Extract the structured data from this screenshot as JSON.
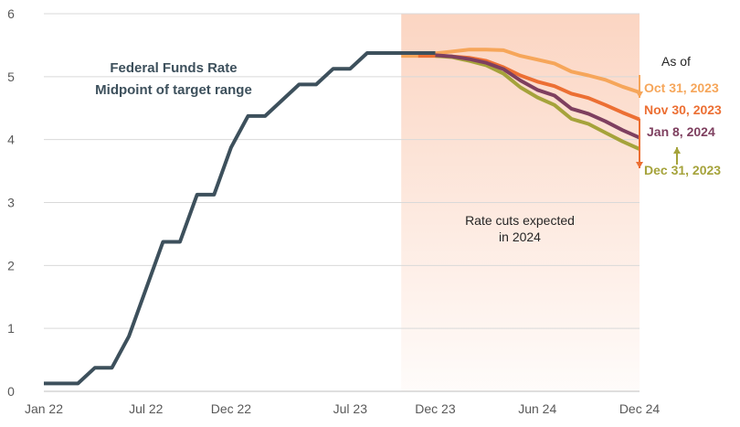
{
  "colors": {
    "fed_funds": "#3d505c",
    "shade": "#fbd5c2",
    "oct": "#f6a65a",
    "nov": "#ec6f33",
    "jan": "#7e3f5f",
    "dec": "#a5a33b",
    "grid": "#d9d9d9",
    "text": "#595959"
  },
  "chart_data": {
    "type": "line",
    "title": "",
    "x_tick_labels": [
      "Jan 22",
      "Jul 22",
      "Dec 22",
      "Jul 23",
      "Dec 23",
      "Jun 24",
      "Dec 24"
    ],
    "x_tick_dates": [
      "2022-01",
      "2022-07",
      "2022-12",
      "2023-07",
      "2023-12",
      "2024-06",
      "2024-12"
    ],
    "y_ticks": [
      0,
      1,
      2,
      3,
      4,
      5,
      6
    ],
    "ylim": [
      0,
      6
    ],
    "grid": "horizontal",
    "shaded_region": {
      "from": "2023-10",
      "to": "2024-12",
      "label": "Rate cuts expected\nin 2024"
    },
    "series_label": "Federal Funds Rate\nMidpoint of target range",
    "legend_title": "As of",
    "series": [
      {
        "name": "Federal Funds Rate",
        "color_key": "fed_funds",
        "x": [
          "2022-01",
          "2022-02",
          "2022-03",
          "2022-04",
          "2022-05",
          "2022-06",
          "2022-07",
          "2022-08",
          "2022-09",
          "2022-10",
          "2022-11",
          "2022-12",
          "2023-01",
          "2023-02",
          "2023-03",
          "2023-04",
          "2023-05",
          "2023-06",
          "2023-07",
          "2023-08",
          "2023-09",
          "2023-10",
          "2023-11",
          "2023-12"
        ],
        "values": [
          0.125,
          0.125,
          0.125,
          0.375,
          0.375,
          0.875,
          1.625,
          2.375,
          2.375,
          3.125,
          3.125,
          3.875,
          4.375,
          4.375,
          4.625,
          4.875,
          4.875,
          5.125,
          5.125,
          5.375,
          5.375,
          5.375,
          5.375,
          5.375
        ]
      },
      {
        "name": "Oct 31, 2023",
        "color_key": "oct",
        "x": [
          "2023-10",
          "2023-11",
          "2023-12",
          "2024-01",
          "2024-02",
          "2024-03",
          "2024-04",
          "2024-05",
          "2024-06",
          "2024-07",
          "2024-08",
          "2024-09",
          "2024-10",
          "2024-11",
          "2024-12"
        ],
        "values": [
          5.33,
          5.33,
          5.37,
          5.4,
          5.43,
          5.43,
          5.42,
          5.33,
          5.27,
          5.21,
          5.08,
          5.02,
          4.95,
          4.84,
          4.75
        ]
      },
      {
        "name": "Nov 30, 2023",
        "color_key": "nov",
        "x": [
          "2023-11",
          "2023-12",
          "2024-01",
          "2024-02",
          "2024-03",
          "2024-04",
          "2024-05",
          "2024-06",
          "2024-07",
          "2024-08",
          "2024-09",
          "2024-10",
          "2024-11",
          "2024-12"
        ],
        "values": [
          5.33,
          5.33,
          5.32,
          5.3,
          5.25,
          5.15,
          5.02,
          4.92,
          4.85,
          4.73,
          4.66,
          4.55,
          4.43,
          4.32
        ]
      },
      {
        "name": "Jan 8, 2024",
        "color_key": "jan",
        "x": [
          "2023-12",
          "2024-01",
          "2024-02",
          "2024-03",
          "2024-04",
          "2024-05",
          "2024-06",
          "2024-07",
          "2024-08",
          "2024-09",
          "2024-10",
          "2024-11",
          "2024-12"
        ],
        "values": [
          5.34,
          5.32,
          5.28,
          5.22,
          5.12,
          4.94,
          4.79,
          4.7,
          4.49,
          4.41,
          4.29,
          4.15,
          4.03
        ]
      },
      {
        "name": "Dec 31, 2023",
        "color_key": "dec",
        "x": [
          "2023-12",
          "2024-01",
          "2024-02",
          "2024-03",
          "2024-04",
          "2024-05",
          "2024-06",
          "2024-07",
          "2024-08",
          "2024-09",
          "2024-10",
          "2024-11",
          "2024-12"
        ],
        "values": [
          5.33,
          5.31,
          5.25,
          5.18,
          5.05,
          4.83,
          4.67,
          4.55,
          4.33,
          4.25,
          4.11,
          3.97,
          3.85
        ]
      }
    ]
  }
}
